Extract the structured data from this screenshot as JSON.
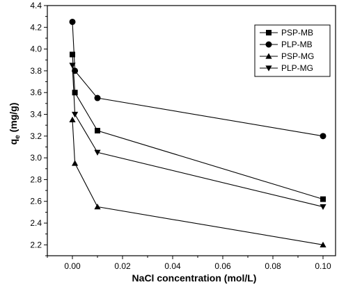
{
  "chart_data": {
    "type": "line",
    "xlabel": "NaCl concentration (mol/L)",
    "ylabel_main": "q",
    "ylabel_sub": "e",
    "ylabel_unit": " (mg/g)",
    "xlim": [
      -0.01,
      0.105
    ],
    "ylim": [
      2.1,
      4.4
    ],
    "x_ticks": [
      0.0,
      0.02,
      0.04,
      0.06,
      0.08,
      0.1
    ],
    "x_tick_labels": [
      "0.00",
      "0.02",
      "0.04",
      "0.06",
      "0.08",
      "0.10"
    ],
    "y_ticks": [
      2.2,
      2.4,
      2.6,
      2.8,
      3.0,
      3.2,
      3.4,
      3.6,
      3.8,
      4.0,
      4.2,
      4.4
    ],
    "y_tick_labels": [
      "2.2",
      "2.4",
      "2.6",
      "2.8",
      "3.0",
      "3.2",
      "3.4",
      "3.6",
      "3.8",
      "4.0",
      "4.2",
      "4.4"
    ],
    "grid": false,
    "legend_position": "top-right",
    "x": [
      0.0,
      0.001,
      0.01,
      0.1
    ],
    "series": [
      {
        "name": "PSP-MB",
        "marker": "square",
        "values": [
          3.95,
          3.6,
          3.25,
          2.62
        ]
      },
      {
        "name": "PLP-MB",
        "marker": "circle",
        "values": [
          4.25,
          3.8,
          3.55,
          3.2
        ]
      },
      {
        "name": "PSP-MG",
        "marker": "triangle-up",
        "values": [
          3.35,
          2.95,
          2.55,
          2.2
        ]
      },
      {
        "name": "PLP-MG",
        "marker": "triangle-down",
        "values": [
          3.85,
          3.4,
          3.05,
          2.55
        ]
      }
    ],
    "colors": {
      "line": "#000000",
      "marker": "#000000"
    }
  }
}
